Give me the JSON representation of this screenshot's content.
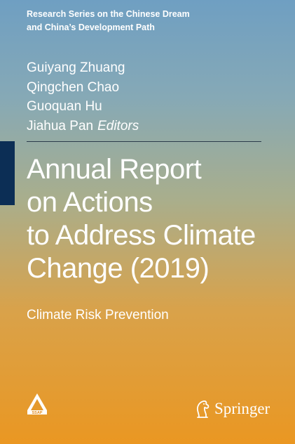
{
  "series": {
    "line1": "Research Series on the Chinese Dream",
    "line2": "and China’s Development Path"
  },
  "editors": {
    "names": [
      "Guiyang Zhuang",
      "Qingchen Chao",
      "Guoquan Hu",
      "Jiahua Pan"
    ],
    "role": "Editors"
  },
  "title": {
    "lines": [
      "Annual Report",
      "on Actions",
      "to Address Climate",
      "Change (2019)"
    ]
  },
  "subtitle": "Climate Risk Prevention",
  "logos": {
    "left_text": "SSAP",
    "publisher": "Springer"
  },
  "colors": {
    "top": "#6f9fc2",
    "bottom": "#ea9722",
    "accent_bar": "#0c2e55",
    "text": "#ffffff"
  }
}
